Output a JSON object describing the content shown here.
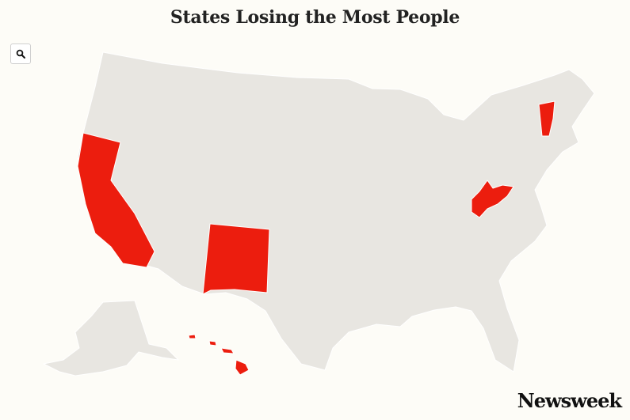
{
  "title": "States Losing the Most People",
  "brand": "Newsweek",
  "icons": {
    "zoom": "search-icon"
  },
  "colors": {
    "highlight": "#ec1d0e",
    "base": "#e8e6e1",
    "border": "#ffffff",
    "background": "#fdfcf7"
  },
  "highlighted_states": [
    "California",
    "New Mexico",
    "West Virginia",
    "Vermont",
    "Hawaii"
  ]
}
